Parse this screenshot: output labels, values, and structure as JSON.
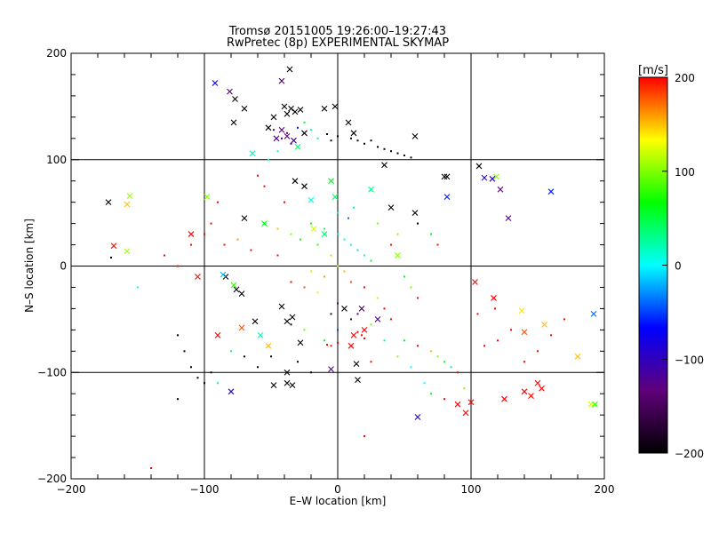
{
  "chart_data": {
    "type": "scatter",
    "title": "Tromsø 20151005 19:26:00–19:27:43",
    "subtitle": "RwPretec (8p) EXPERIMENTAL SKYMAP",
    "xlabel": "E–W location [km]",
    "ylabel": "N–S location [km]",
    "xlim": [
      -200,
      200
    ],
    "ylim": [
      -200,
      200
    ],
    "xticks": [
      -200,
      -100,
      0,
      100,
      200
    ],
    "yticks": [
      -200,
      -100,
      0,
      100,
      200
    ],
    "x_tick_labels": [
      "−200",
      "−100",
      "0",
      "100",
      "200"
    ],
    "y_tick_labels": [
      "−200",
      "−100",
      "0",
      "100",
      "200"
    ],
    "grid": true,
    "colorbar": {
      "label": "[m/s]",
      "range": [
        -200,
        200
      ],
      "ticks": [
        200,
        100,
        0,
        -100,
        -200
      ],
      "tick_labels": [
        "200",
        "100",
        "0",
        "−100",
        "−200"
      ],
      "colormap_stops": [
        "#000000",
        "#60007a",
        "#0000ff",
        "#00ffff",
        "#00ff00",
        "#ffff00",
        "#ff0000"
      ]
    },
    "series": [
      {
        "marker": "x",
        "points": [
          [
            -36,
            185,
            -200
          ],
          [
            -42,
            174,
            -150
          ],
          [
            -92,
            172,
            -70
          ],
          [
            -81,
            164,
            -140
          ],
          [
            -77,
            157,
            -200
          ],
          [
            -70,
            148,
            -200
          ],
          [
            -32,
            145,
            -200
          ],
          [
            -38,
            143,
            -200
          ],
          [
            -28,
            147,
            -200
          ],
          [
            -35,
            148,
            -200
          ],
          [
            -40,
            150,
            -200
          ],
          [
            -48,
            140,
            -200
          ],
          [
            -10,
            148,
            -200
          ],
          [
            -2,
            150,
            -200
          ],
          [
            -78,
            135,
            -200
          ],
          [
            -42,
            128,
            -130
          ],
          [
            -38,
            122,
            -130
          ],
          [
            -46,
            120,
            -120
          ],
          [
            -33,
            118,
            -120
          ],
          [
            -52,
            130,
            -200
          ],
          [
            -25,
            125,
            -200
          ],
          [
            -30,
            112,
            40
          ],
          [
            -64,
            106,
            20
          ],
          [
            8,
            135,
            -200
          ],
          [
            12,
            125,
            -200
          ],
          [
            58,
            122,
            -200
          ],
          [
            35,
            95,
            -200
          ],
          [
            80,
            84,
            -200
          ],
          [
            82,
            84,
            -200
          ],
          [
            106,
            94,
            -200
          ],
          [
            110,
            83,
            -100
          ],
          [
            119,
            84,
            100
          ],
          [
            116,
            82,
            -100
          ],
          [
            122,
            72,
            -130
          ],
          [
            128,
            45,
            -120
          ],
          [
            160,
            70,
            -60
          ],
          [
            82,
            65,
            -60
          ],
          [
            -172,
            60,
            -200
          ],
          [
            -156,
            66,
            110
          ],
          [
            -158,
            58,
            150
          ],
          [
            -168,
            19,
            200
          ],
          [
            -158,
            14,
            110
          ],
          [
            -98,
            65,
            100
          ],
          [
            -84,
            -10,
            -200
          ],
          [
            -78,
            -18,
            80
          ],
          [
            -76,
            -22,
            -200
          ],
          [
            -72,
            -26,
            -200
          ],
          [
            -86,
            -8,
            -20
          ],
          [
            -90,
            -65,
            200
          ],
          [
            -72,
            -58,
            180
          ],
          [
            -62,
            -52,
            -200
          ],
          [
            -58,
            -65,
            20
          ],
          [
            -42,
            -38,
            -200
          ],
          [
            -38,
            -52,
            -200
          ],
          [
            -34,
            -48,
            -200
          ],
          [
            -28,
            -72,
            -200
          ],
          [
            -52,
            -75,
            150
          ],
          [
            -38,
            -110,
            -200
          ],
          [
            -34,
            -112,
            -200
          ],
          [
            -38,
            -100,
            -200
          ],
          [
            -48,
            -112,
            -200
          ],
          [
            -80,
            -118,
            -100
          ],
          [
            -5,
            -97,
            -120
          ],
          [
            14,
            -92,
            -200
          ],
          [
            15,
            -107,
            -200
          ],
          [
            60,
            -142,
            -100
          ],
          [
            96,
            -138,
            200
          ],
          [
            90,
            -130,
            200
          ],
          [
            100,
            -128,
            200
          ],
          [
            125,
            -125,
            200
          ],
          [
            140,
            -118,
            200
          ],
          [
            145,
            -122,
            200
          ],
          [
            150,
            -110,
            200
          ],
          [
            153,
            -115,
            200
          ],
          [
            180,
            -85,
            150
          ],
          [
            190,
            -130,
            120
          ],
          [
            193,
            -130,
            80
          ],
          [
            192,
            -45,
            -40
          ],
          [
            140,
            -62,
            180
          ],
          [
            155,
            -55,
            150
          ],
          [
            138,
            -42,
            140
          ],
          [
            103,
            -15,
            200
          ],
          [
            117,
            -30,
            200
          ],
          [
            5,
            -40,
            -200
          ],
          [
            18,
            -40,
            -150
          ],
          [
            30,
            -50,
            -120
          ],
          [
            10,
            -75,
            200
          ],
          [
            20,
            -60,
            200
          ],
          [
            12,
            -65,
            200
          ],
          [
            -25,
            75,
            -200
          ],
          [
            -32,
            80,
            -200
          ],
          [
            -5,
            80,
            60
          ],
          [
            25,
            72,
            30
          ],
          [
            -2,
            65,
            40
          ],
          [
            -20,
            62,
            10
          ],
          [
            -70,
            45,
            -200
          ],
          [
            -55,
            40,
            60
          ],
          [
            58,
            50,
            -200
          ],
          [
            40,
            55,
            -200
          ],
          [
            -10,
            30,
            40
          ],
          [
            -18,
            35,
            120
          ],
          [
            45,
            10,
            100
          ],
          [
            -105,
            -10,
            200
          ],
          [
            -110,
            30,
            200
          ]
        ]
      },
      {
        "marker": "dot",
        "points": [
          [
            -38,
            125,
            -140
          ],
          [
            -42,
            120,
            -130
          ],
          [
            -35,
            115,
            -120
          ],
          [
            -48,
            128,
            -110
          ],
          [
            -30,
            130,
            -60
          ],
          [
            -25,
            135,
            60
          ],
          [
            -20,
            128,
            20
          ],
          [
            -15,
            120,
            30
          ],
          [
            -45,
            108,
            20
          ],
          [
            -52,
            100,
            10
          ],
          [
            10,
            120,
            -200
          ],
          [
            15,
            118,
            -200
          ],
          [
            20,
            115,
            -200
          ],
          [
            25,
            118,
            -200
          ],
          [
            30,
            112,
            -200
          ],
          [
            35,
            110,
            -200
          ],
          [
            40,
            108,
            -200
          ],
          [
            45,
            106,
            -200
          ],
          [
            50,
            104,
            -200
          ],
          [
            0,
            122,
            -200
          ],
          [
            -8,
            124,
            -200
          ],
          [
            -5,
            118,
            -200
          ],
          [
            55,
            102,
            -200
          ],
          [
            -60,
            85,
            200
          ],
          [
            -55,
            75,
            200
          ],
          [
            -40,
            60,
            200
          ],
          [
            -90,
            60,
            200
          ],
          [
            -95,
            40,
            200
          ],
          [
            -100,
            30,
            200
          ],
          [
            -110,
            20,
            200
          ],
          [
            -85,
            20,
            200
          ],
          [
            -75,
            25,
            160
          ],
          [
            -65,
            15,
            200
          ],
          [
            -45,
            10,
            200
          ],
          [
            -20,
            40,
            60
          ],
          [
            -10,
            35,
            40
          ],
          [
            0,
            30,
            20
          ],
          [
            5,
            25,
            10
          ],
          [
            10,
            20,
            0
          ],
          [
            15,
            15,
            -10
          ],
          [
            20,
            10,
            20
          ],
          [
            25,
            5,
            60
          ],
          [
            -15,
            20,
            80
          ],
          [
            -5,
            10,
            100
          ],
          [
            0,
            0,
            120
          ],
          [
            5,
            -5,
            150
          ],
          [
            -10,
            -10,
            160
          ],
          [
            -20,
            -5,
            120
          ],
          [
            10,
            -15,
            180
          ],
          [
            20,
            -20,
            200
          ],
          [
            30,
            -30,
            140
          ],
          [
            35,
            -40,
            200
          ],
          [
            40,
            -50,
            200
          ],
          [
            25,
            -55,
            100
          ],
          [
            15,
            -45,
            -120
          ],
          [
            0,
            -35,
            -140
          ],
          [
            -5,
            -45,
            -170
          ],
          [
            10,
            -50,
            -160
          ],
          [
            0,
            -60,
            -50
          ],
          [
            -10,
            -70,
            60
          ],
          [
            -5,
            -75,
            200
          ],
          [
            0,
            -72,
            200
          ],
          [
            -8,
            -74,
            200
          ],
          [
            18,
            -65,
            200
          ],
          [
            15,
            -62,
            200
          ],
          [
            20,
            -68,
            200
          ],
          [
            50,
            -70,
            60
          ],
          [
            60,
            -75,
            200
          ],
          [
            70,
            -80,
            150
          ],
          [
            75,
            -85,
            100
          ],
          [
            80,
            -90,
            60
          ],
          [
            85,
            -95,
            30
          ],
          [
            90,
            -100,
            200
          ],
          [
            65,
            -110,
            0
          ],
          [
            70,
            -120,
            60
          ],
          [
            80,
            -125,
            200
          ],
          [
            95,
            -115,
            100
          ],
          [
            110,
            -75,
            200
          ],
          [
            120,
            -70,
            200
          ],
          [
            130,
            -60,
            200
          ],
          [
            150,
            -80,
            200
          ],
          [
            160,
            -65,
            200
          ],
          [
            170,
            -50,
            200
          ],
          [
            105,
            -45,
            200
          ],
          [
            118,
            -40,
            200
          ],
          [
            140,
            -90,
            200
          ],
          [
            -120,
            -65,
            -200
          ],
          [
            -115,
            -80,
            -200
          ],
          [
            -110,
            -95,
            -200
          ],
          [
            -105,
            -105,
            -200
          ],
          [
            -100,
            -110,
            -200
          ],
          [
            -95,
            -100,
            -200
          ],
          [
            -60,
            -95,
            -200
          ],
          [
            -50,
            -85,
            -200
          ],
          [
            -30,
            -90,
            -200
          ],
          [
            -20,
            -100,
            -200
          ],
          [
            -120,
            -125,
            -200
          ],
          [
            20,
            -160,
            200
          ],
          [
            -140,
            -190,
            200
          ],
          [
            -150,
            -20,
            0
          ],
          [
            -170,
            8,
            -200
          ],
          [
            -90,
            -110,
            20
          ],
          [
            -80,
            -80,
            40
          ],
          [
            -70,
            -85,
            -200
          ],
          [
            -120,
            0,
            200
          ],
          [
            -130,
            10,
            200
          ],
          [
            40,
            20,
            200
          ],
          [
            50,
            -10,
            60
          ],
          [
            55,
            -20,
            100
          ],
          [
            60,
            -30,
            200
          ],
          [
            45,
            30,
            150
          ],
          [
            30,
            40,
            100
          ],
          [
            60,
            40,
            -200
          ],
          [
            70,
            30,
            60
          ],
          [
            75,
            20,
            200
          ],
          [
            35,
            -70,
            30
          ],
          [
            45,
            -85,
            100
          ],
          [
            55,
            -95,
            0
          ],
          [
            25,
            -90,
            200
          ],
          [
            -25,
            -60,
            100
          ],
          [
            -35,
            -55,
            -200
          ],
          [
            -15,
            -25,
            140
          ],
          [
            -25,
            -20,
            180
          ],
          [
            -35,
            -15,
            200
          ],
          [
            0,
            50,
            20
          ],
          [
            8,
            45,
            -40
          ],
          [
            12,
            55,
            30
          ],
          [
            -28,
            25,
            60
          ],
          [
            -35,
            30,
            100
          ],
          [
            -45,
            35,
            150
          ]
        ]
      }
    ]
  }
}
